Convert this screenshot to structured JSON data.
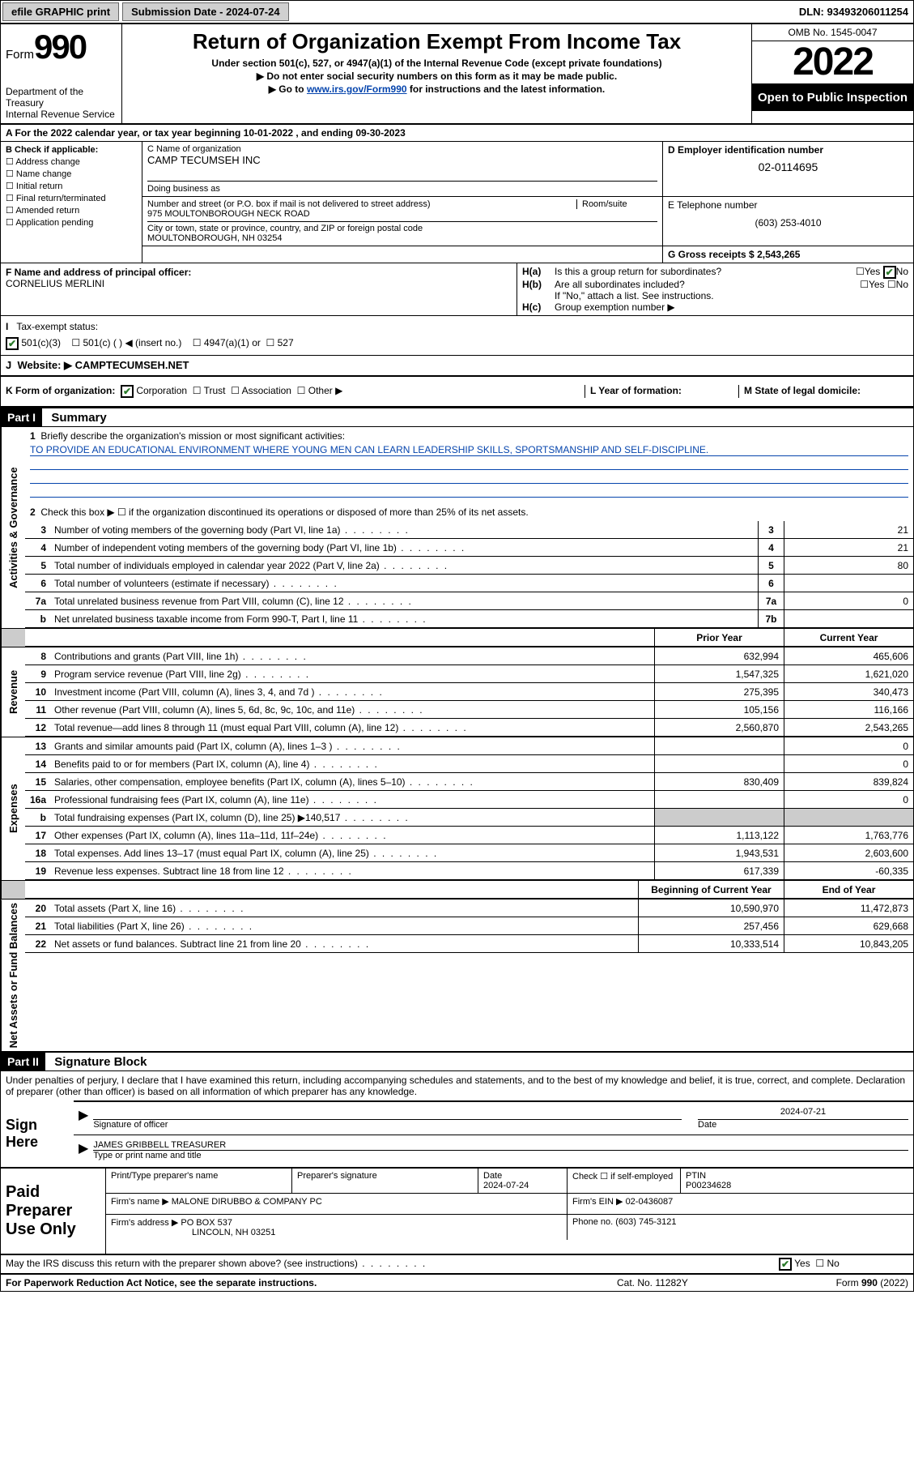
{
  "top": {
    "efile": "efile GRAPHIC print",
    "sub_label": "Submission Date - 2024-07-24",
    "dln": "DLN: 93493206011254"
  },
  "header": {
    "form_word": "Form",
    "form_num": "990",
    "title": "Return of Organization Exempt From Income Tax",
    "sub1": "Under section 501(c), 527, or 4947(a)(1) of the Internal Revenue Code (except private foundations)",
    "sub2": "▶ Do not enter social security numbers on this form as it may be made public.",
    "sub3_pre": "▶ Go to ",
    "sub3_link": "www.irs.gov/Form990",
    "sub3_post": " for instructions and the latest information.",
    "dept": "Department of the Treasury\nInternal Revenue Service",
    "omb": "OMB No. 1545-0047",
    "year": "2022",
    "open": "Open to Public Inspection"
  },
  "rowA": "A For the 2022 calendar year, or tax year beginning 10-01-2022   , and ending 09-30-2023",
  "colB": {
    "label": "B Check if applicable:",
    "items": [
      "Address change",
      "Name change",
      "Initial return",
      "Final return/terminated",
      "Amended return",
      "Application pending"
    ]
  },
  "colC": {
    "name_label": "C Name of organization",
    "name": "CAMP TECUMSEH INC",
    "dba_label": "Doing business as",
    "addr_label": "Number and street (or P.O. box if mail is not delivered to street address)",
    "room_label": "Room/suite",
    "addr": "975 MOULTONBOROUGH NECK ROAD",
    "city_label": "City or town, state or province, country, and ZIP or foreign postal code",
    "city": "MOULTONBOROUGH, NH  03254"
  },
  "colD": {
    "label": "D Employer identification number",
    "ein": "02-0114695"
  },
  "colE": {
    "label": "E Telephone number",
    "tel": "(603) 253-4010"
  },
  "colG": {
    "label": "G Gross receipts $",
    "val": "2,543,265"
  },
  "colF": {
    "label": "F Name and address of principal officer:",
    "name": "CORNELIUS MERLINI"
  },
  "colH": {
    "ha_label": "H(a)",
    "ha_q": "Is this a group return for subordinates?",
    "ha_yes": "Yes",
    "ha_no": "No",
    "hb_label": "H(b)",
    "hb_q": "Are all subordinates included?",
    "hb_note": "If \"No,\" attach a list. See instructions.",
    "hc_label": "H(c)",
    "hc_q": "Group exemption number ▶"
  },
  "rowI": {
    "label": "Tax-exempt status:",
    "opts": [
      "501(c)(3)",
      "501(c) (  ) ◀ (insert no.)",
      "4947(a)(1) or",
      "527"
    ]
  },
  "rowJ": {
    "label": "Website: ▶",
    "val": "CAMPTECUMSEH.NET"
  },
  "rowK": {
    "label": "K Form of organization:",
    "opts": [
      "Corporation",
      "Trust",
      "Association",
      "Other ▶"
    ],
    "l_label": "L Year of formation:",
    "m_label": "M State of legal domicile:"
  },
  "part1": {
    "part_label": "Part I",
    "title": "Summary",
    "tabs": {
      "gov": "Activities & Governance",
      "rev": "Revenue",
      "exp": "Expenses",
      "net": "Net Assets or Fund Balances"
    },
    "q1_label": "Briefly describe the organization's mission or most significant activities:",
    "q1_text": "TO PROVIDE AN EDUCATIONAL ENVIRONMENT WHERE YOUNG MEN CAN LEARN LEADERSHIP SKILLS, SPORTSMANSHIP AND SELF-DISCIPLINE.",
    "q2": "Check this box ▶ ☐  if the organization discontinued its operations or disposed of more than 25% of its net assets.",
    "lines_simple": [
      {
        "n": "3",
        "t": "Number of voting members of the governing body (Part VI, line 1a)",
        "box": "3",
        "v": "21"
      },
      {
        "n": "4",
        "t": "Number of independent voting members of the governing body (Part VI, line 1b)",
        "box": "4",
        "v": "21"
      },
      {
        "n": "5",
        "t": "Total number of individuals employed in calendar year 2022 (Part V, line 2a)",
        "box": "5",
        "v": "80"
      },
      {
        "n": "6",
        "t": "Total number of volunteers (estimate if necessary)",
        "box": "6",
        "v": ""
      },
      {
        "n": "7a",
        "t": "Total unrelated business revenue from Part VIII, column (C), line 12",
        "box": "7a",
        "v": "0"
      },
      {
        "n": "b",
        "t": "Net unrelated business taxable income from Form 990-T, Part I, line 11",
        "box": "7b",
        "v": ""
      }
    ],
    "col_hdr": {
      "prior": "Prior Year",
      "current": "Current Year"
    },
    "rev_lines": [
      {
        "n": "8",
        "t": "Contributions and grants (Part VIII, line 1h)",
        "p": "632,994",
        "c": "465,606"
      },
      {
        "n": "9",
        "t": "Program service revenue (Part VIII, line 2g)",
        "p": "1,547,325",
        "c": "1,621,020"
      },
      {
        "n": "10",
        "t": "Investment income (Part VIII, column (A), lines 3, 4, and 7d )",
        "p": "275,395",
        "c": "340,473"
      },
      {
        "n": "11",
        "t": "Other revenue (Part VIII, column (A), lines 5, 6d, 8c, 9c, 10c, and 11e)",
        "p": "105,156",
        "c": "116,166"
      },
      {
        "n": "12",
        "t": "Total revenue—add lines 8 through 11 (must equal Part VIII, column (A), line 12)",
        "p": "2,560,870",
        "c": "2,543,265"
      }
    ],
    "exp_lines": [
      {
        "n": "13",
        "t": "Grants and similar amounts paid (Part IX, column (A), lines 1–3 )",
        "p": "",
        "c": "0"
      },
      {
        "n": "14",
        "t": "Benefits paid to or for members (Part IX, column (A), line 4)",
        "p": "",
        "c": "0"
      },
      {
        "n": "15",
        "t": "Salaries, other compensation, employee benefits (Part IX, column (A), lines 5–10)",
        "p": "830,409",
        "c": "839,824"
      },
      {
        "n": "16a",
        "t": "Professional fundraising fees (Part IX, column (A), line 11e)",
        "p": "",
        "c": "0"
      },
      {
        "n": "b",
        "t": "Total fundraising expenses (Part IX, column (D), line 25) ▶140,517",
        "p": "shade",
        "c": "shade"
      },
      {
        "n": "17",
        "t": "Other expenses (Part IX, column (A), lines 11a–11d, 11f–24e)",
        "p": "1,113,122",
        "c": "1,763,776"
      },
      {
        "n": "18",
        "t": "Total expenses. Add lines 13–17 (must equal Part IX, column (A), line 25)",
        "p": "1,943,531",
        "c": "2,603,600"
      },
      {
        "n": "19",
        "t": "Revenue less expenses. Subtract line 18 from line 12",
        "p": "617,339",
        "c": "-60,335"
      }
    ],
    "net_hdr": {
      "begin": "Beginning of Current Year",
      "end": "End of Year"
    },
    "net_lines": [
      {
        "n": "20",
        "t": "Total assets (Part X, line 16)",
        "p": "10,590,970",
        "c": "11,472,873"
      },
      {
        "n": "21",
        "t": "Total liabilities (Part X, line 26)",
        "p": "257,456",
        "c": "629,668"
      },
      {
        "n": "22",
        "t": "Net assets or fund balances. Subtract line 21 from line 20",
        "p": "10,333,514",
        "c": "10,843,205"
      }
    ]
  },
  "part2": {
    "part_label": "Part II",
    "title": "Signature Block",
    "decl": "Under penalties of perjury, I declare that I have examined this return, including accompanying schedules and statements, and to the best of my knowledge and belief, it is true, correct, and complete. Declaration of preparer (other than officer) is based on all information of which preparer has any knowledge.",
    "sign_here": "Sign Here",
    "sig_officer": "Signature of officer",
    "sig_date": "Date",
    "sig_date_val": "2024-07-21",
    "sig_name_label": "Type or print name and title",
    "sig_name": "JAMES GRIBBELL TREASURER",
    "paid": "Paid Preparer Use Only",
    "prep_name_label": "Print/Type preparer's name",
    "prep_sig_label": "Preparer's signature",
    "prep_date_label": "Date",
    "prep_date": "2024-07-24",
    "prep_check": "Check ☐ if self-employed",
    "ptin_label": "PTIN",
    "ptin": "P00234628",
    "firm_name_label": "Firm's name    ▶",
    "firm_name": "MALONE DIRUBBO & COMPANY PC",
    "firm_ein_label": "Firm's EIN ▶",
    "firm_ein": "02-0436087",
    "firm_addr_label": "Firm's address ▶",
    "firm_addr1": "PO BOX 537",
    "firm_addr2": "LINCOLN, NH  03251",
    "firm_phone_label": "Phone no.",
    "firm_phone": "(603) 745-3121",
    "discuss": "May the IRS discuss this return with the preparer shown above? (see instructions)",
    "discuss_yes": "Yes",
    "discuss_no": "No"
  },
  "footer": {
    "pra": "For Paperwork Reduction Act Notice, see the separate instructions.",
    "cat": "Cat. No. 11282Y",
    "form": "Form 990 (2022)"
  },
  "colors": {
    "link": "#0645ad",
    "check": "#2a7a2a",
    "shade": "#cccccc"
  }
}
